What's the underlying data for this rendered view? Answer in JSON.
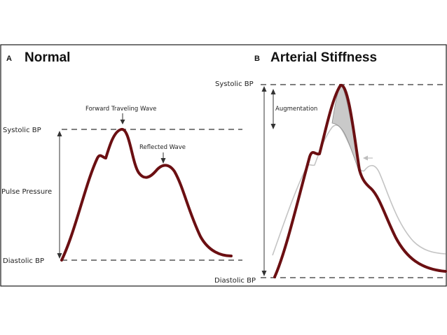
{
  "panel_a": {
    "letter": "A",
    "title": "Normal",
    "labels": {
      "systolic": "Systolic BP",
      "pulse_pressure": "Pulse Pressure",
      "diastolic": "Diastolic BP",
      "forward_wave": "Forward Traveling Wave",
      "reflected_wave": "Reflected Wave"
    }
  },
  "panel_b": {
    "letter": "B",
    "title": "Arterial Stiffness",
    "labels": {
      "systolic": "Systolic BP",
      "augmentation": "Augmentation",
      "diastolic": "Diastolic BP"
    }
  },
  "colors": {
    "wave": "#6b0f12",
    "reference_wave": "#c4c4c4",
    "augmentation_fill": "#c9c9c9",
    "dashed_line": "#555555"
  }
}
